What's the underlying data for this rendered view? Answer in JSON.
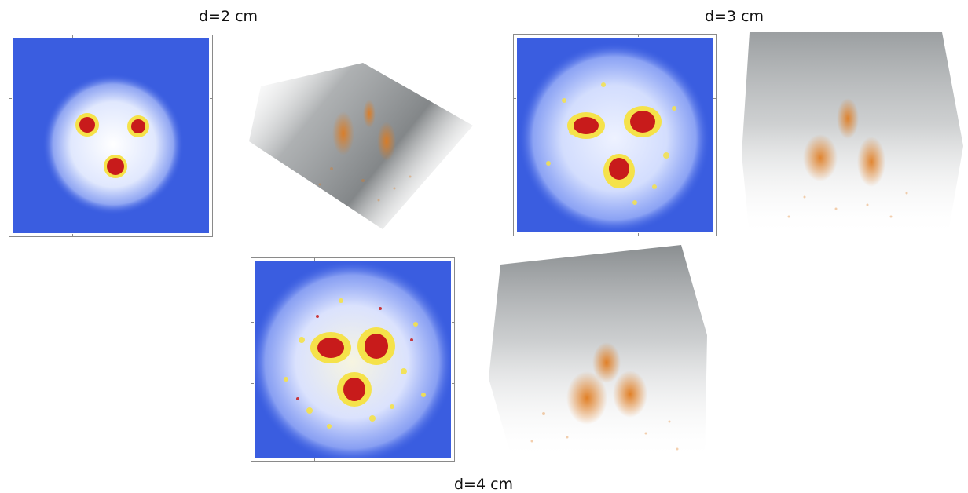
{
  "panels": [
    {
      "label": "d=2 cm"
    },
    {
      "label": "d=3 cm"
    },
    {
      "label": "d=4 cm"
    }
  ],
  "colors": {
    "background_blue": "#3a5de0",
    "halo_white": "#f3f6ff",
    "hot_yellow": "#f5e24a",
    "core_red": "#c81b1b",
    "volume_gray": "#5a5f62",
    "volume_orange": "#e07a1c"
  }
}
